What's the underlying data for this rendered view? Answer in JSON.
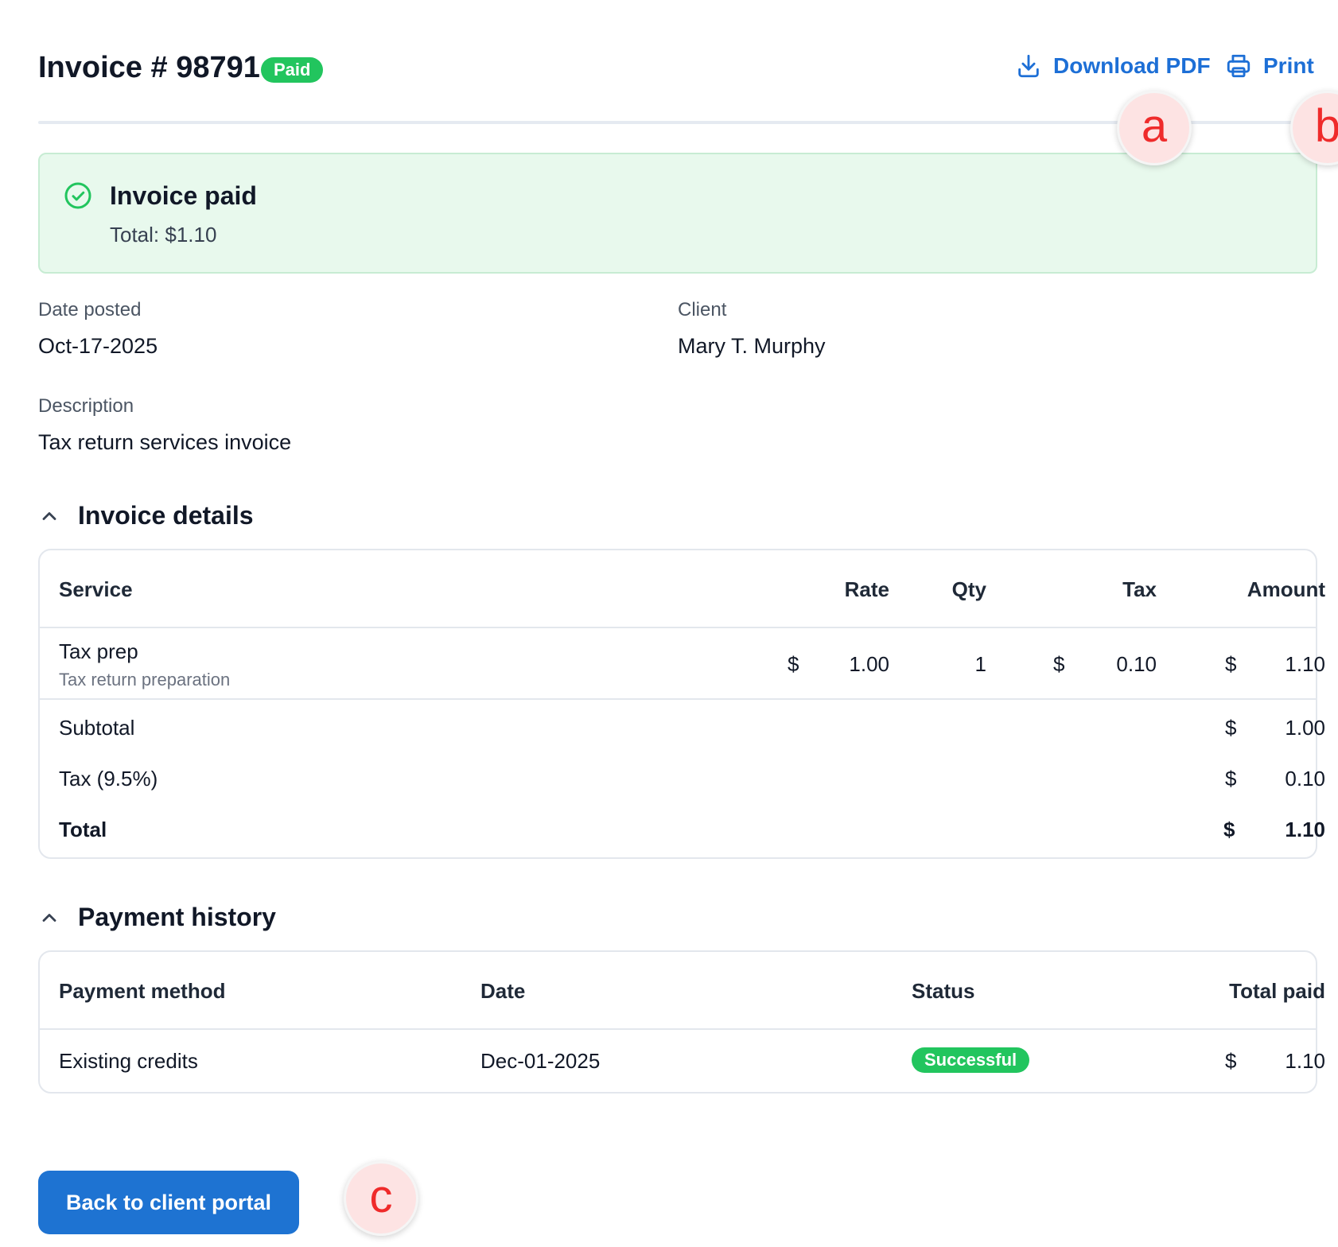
{
  "header": {
    "title": "Invoice # 98791",
    "status_badge": "Paid",
    "download_label": "Download PDF",
    "print_label": "Print",
    "download_icon": "download-icon",
    "print_icon": "printer-icon"
  },
  "markers": {
    "a": "a",
    "b": "b",
    "c": "c"
  },
  "banner": {
    "title": "Invoice paid",
    "subtitle": "Total: $1.10",
    "icon": "check-circle-icon",
    "color": "#e8f9ed"
  },
  "info": {
    "date_label": "Date posted",
    "date_value": "Oct-17-2025",
    "client_label": "Client",
    "client_value": "Mary T. Murphy",
    "description_label": "Description",
    "description_value": "Tax return services invoice"
  },
  "invoice_details": {
    "title": "Invoice details",
    "headers": {
      "service": "Service",
      "rate": "Rate",
      "qty": "Qty",
      "tax": "Tax",
      "amount": "Amount"
    },
    "items": [
      {
        "service": "Tax prep",
        "service_sub": "Tax return preparation",
        "rate_symbol": "$",
        "rate": "1.00",
        "qty": "1",
        "tax_symbol": "$",
        "tax": "0.10",
        "amount_symbol": "$",
        "amount": "1.10"
      }
    ],
    "summary": {
      "subtotal_label": "Subtotal",
      "subtotal_symbol": "$",
      "subtotal": "1.00",
      "tax_label": "Tax (9.5%)",
      "tax_symbol": "$",
      "tax": "0.10",
      "total_label": "Total",
      "total_symbol": "$",
      "total": "1.10"
    }
  },
  "payment_history": {
    "title": "Payment history",
    "headers": {
      "method": "Payment method",
      "date": "Date",
      "status": "Status",
      "total_paid": "Total paid"
    },
    "rows": [
      {
        "method": "Existing credits",
        "date": "Dec-01-2025",
        "status": "Successful",
        "total_symbol": "$",
        "total_paid": "1.10"
      }
    ]
  },
  "footer": {
    "back_label": "Back to client portal"
  },
  "colors": {
    "accent": "#1e73d2",
    "success": "#22c55e",
    "link": "#1d6fd6"
  }
}
